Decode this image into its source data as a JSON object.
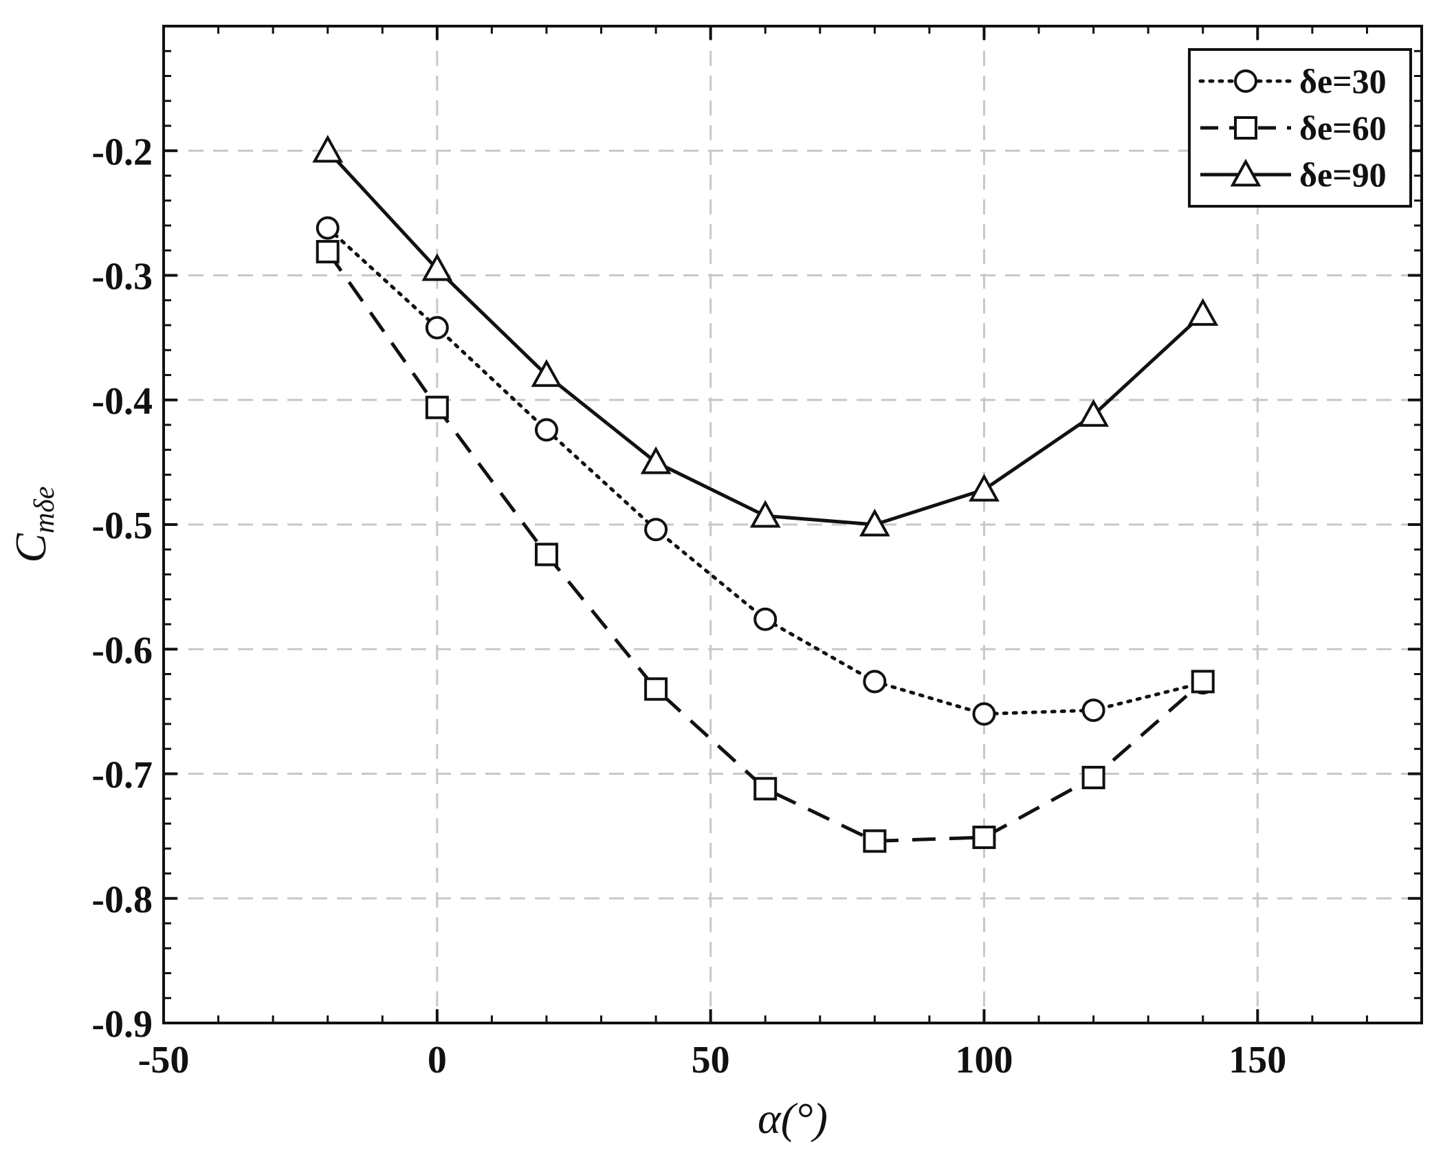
{
  "chart_data": {
    "type": "line",
    "title": "",
    "xlabel": "α(°)",
    "ylabel": "C_mδe",
    "ylabel_main": "C",
    "ylabel_sub": "mδe",
    "xlim": [
      -50,
      180
    ],
    "ylim": [
      -0.9,
      -0.1
    ],
    "xticks": [
      -50,
      0,
      50,
      100,
      150
    ],
    "yticks": [
      -0.9,
      -0.8,
      -0.7,
      -0.6,
      -0.5,
      -0.4,
      -0.3,
      -0.2
    ],
    "xtick_labels": [
      "-50",
      "0",
      "50",
      "100",
      "150"
    ],
    "ytick_labels": [
      "-0.9",
      "-0.8",
      "-0.7",
      "-0.6",
      "-0.5",
      "-0.4",
      "-0.3",
      "-0.2"
    ],
    "grid": true,
    "legend_position": "top-right",
    "x": [
      -20,
      0,
      20,
      40,
      60,
      80,
      100,
      120,
      140
    ],
    "series": [
      {
        "name": "δe=30",
        "marker": "circle",
        "linestyle": "dotted",
        "values": [
          -0.262,
          -0.342,
          -0.424,
          -0.504,
          -0.576,
          -0.626,
          -0.652,
          -0.649,
          -0.627
        ]
      },
      {
        "name": "δe=60",
        "marker": "square",
        "linestyle": "dashed",
        "values": [
          -0.281,
          -0.406,
          -0.524,
          -0.632,
          -0.712,
          -0.754,
          -0.751,
          -0.703,
          -0.626
        ]
      },
      {
        "name": "δe=90",
        "marker": "triangle",
        "linestyle": "solid",
        "values": [
          -0.2,
          -0.295,
          -0.38,
          -0.45,
          -0.493,
          -0.5,
          -0.472,
          -0.412,
          -0.331
        ]
      }
    ],
    "colors": {
      "line": "#111111",
      "grid": "#c8c8c8",
      "background": "#ffffff"
    }
  }
}
